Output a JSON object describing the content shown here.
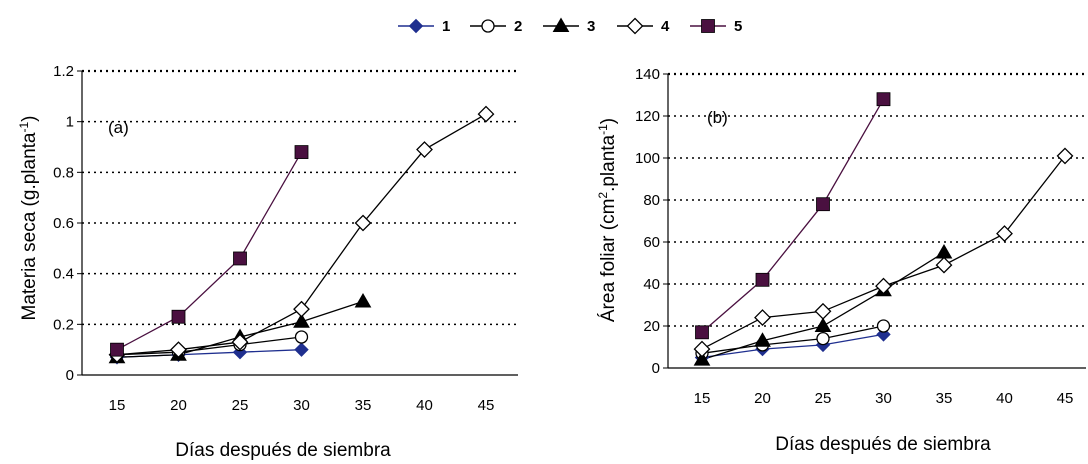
{
  "legend": {
    "items": [
      {
        "label": "1",
        "color": "#1f2f8f",
        "marker": "diamond-filled"
      },
      {
        "label": "2",
        "color": "#000000",
        "marker": "circle-open"
      },
      {
        "label": "3",
        "color": "#000000",
        "marker": "triangle-filled"
      },
      {
        "label": "4",
        "color": "#000000",
        "marker": "diamond-open"
      },
      {
        "label": "5",
        "color": "#4a1040",
        "marker": "square-filled"
      }
    ]
  },
  "chart_data": [
    {
      "type": "line",
      "panel_label": "(a)",
      "xlabel": "Días después de siembra",
      "ylabel": "Materia seca (g.planta",
      "ylabel_sup": "-1",
      "ylabel_tail": ")",
      "x_ticks": [
        "15",
        "20",
        "25",
        "30",
        "35",
        "40",
        "45"
      ],
      "y_ticks": [
        "0",
        "0.2",
        "0.4",
        "0.6",
        "0.8",
        "1",
        "1.2"
      ],
      "ylim": [
        0,
        1.2
      ],
      "x": [
        15,
        20,
        25,
        30,
        35,
        40,
        45
      ],
      "grid": "horizontal dotted",
      "series": [
        {
          "name": "1",
          "values": [
            0.07,
            0.08,
            0.09,
            0.1,
            null,
            null,
            null
          ]
        },
        {
          "name": "2",
          "values": [
            0.08,
            0.09,
            0.12,
            0.15,
            null,
            null,
            null
          ]
        },
        {
          "name": "3",
          "values": [
            0.07,
            0.08,
            0.15,
            0.21,
            0.29,
            null,
            null
          ]
        },
        {
          "name": "4",
          "values": [
            0.08,
            0.1,
            0.13,
            0.26,
            0.6,
            0.89,
            1.03
          ]
        },
        {
          "name": "5",
          "values": [
            0.1,
            0.23,
            0.46,
            0.88,
            null,
            null,
            null
          ]
        }
      ]
    },
    {
      "type": "line",
      "panel_label": "(b)",
      "xlabel": "Días después de siembra",
      "ylabel": "Área foliar (cm",
      "ylabel_sup": "2",
      "ylabel_mid": ".planta",
      "ylabel_sup2": "-1",
      "ylabel_tail": ")",
      "x_ticks": [
        "15",
        "20",
        "25",
        "30",
        "35",
        "40",
        "45"
      ],
      "y_ticks": [
        "0",
        "20",
        "40",
        "60",
        "80",
        "100",
        "120",
        "140"
      ],
      "ylim": [
        0,
        140
      ],
      "x": [
        15,
        20,
        25,
        30,
        35,
        40,
        45
      ],
      "grid": "horizontal dotted",
      "series": [
        {
          "name": "1",
          "values": [
            5,
            9,
            11,
            16,
            null,
            null,
            null
          ]
        },
        {
          "name": "2",
          "values": [
            7,
            11,
            14,
            20,
            null,
            null,
            null
          ]
        },
        {
          "name": "3",
          "values": [
            4,
            13,
            20,
            37,
            55,
            null,
            null
          ]
        },
        {
          "name": "4",
          "values": [
            9,
            24,
            27,
            39,
            49,
            64,
            101
          ]
        },
        {
          "name": "5",
          "values": [
            17,
            42,
            78,
            128,
            null,
            null,
            null
          ]
        }
      ]
    }
  ]
}
